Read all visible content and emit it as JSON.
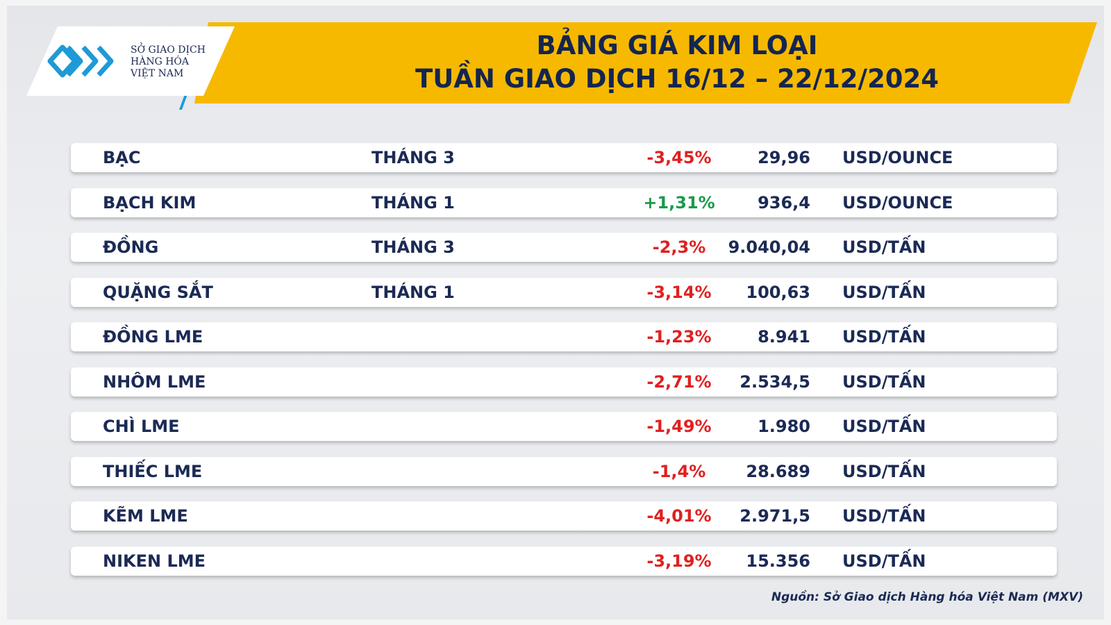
{
  "header": {
    "logo": [
      "SỞ GIAO DỊCH",
      "HÀNG HÓA",
      "VIỆT NAM"
    ],
    "title": [
      "BẢNG GIÁ KIM LOẠI",
      "TUẦN GIAO DỊCH 16/12 – 22/12/2024"
    ]
  },
  "table": {
    "rows": [
      [
        "BẠC",
        "THÁNG 3",
        "-3,45%",
        "29,96",
        "USD/OUNCE"
      ],
      [
        "BẠCH KIM",
        "THÁNG 1",
        "+1,31%",
        "936,4",
        "USD/OUNCE"
      ],
      [
        "ĐỒNG",
        "THÁNG 3",
        "-2,3%",
        "9.040,04",
        "USD/TẤN"
      ],
      [
        "QUẶNG SẮT",
        "THÁNG 1",
        "-3,14%",
        "100,63",
        "USD/TẤN"
      ],
      [
        "ĐỒNG LME",
        null,
        "-1,23%",
        "8.941",
        "USD/TẤN"
      ],
      [
        "NHÔM LME",
        null,
        "-2,71%",
        "2.534,5",
        "USD/TẤN"
      ],
      [
        "CHÌ LME",
        null,
        "-1,49%",
        "1.980",
        "USD/TẤN"
      ],
      [
        "THIẾC LME",
        null,
        "-1,4%",
        "28.689",
        "USD/TẤN"
      ],
      [
        "KẼM LME",
        null,
        "-4,01%",
        "2.971,5",
        "USD/TẤN"
      ],
      [
        "NIKEN LME",
        null,
        "-3,19%",
        "15.356",
        "USD/TẤN"
      ]
    ]
  },
  "source": "Nguồn: Sở Giao dịch Hàng hóa Việt Nam (MXV)"
}
